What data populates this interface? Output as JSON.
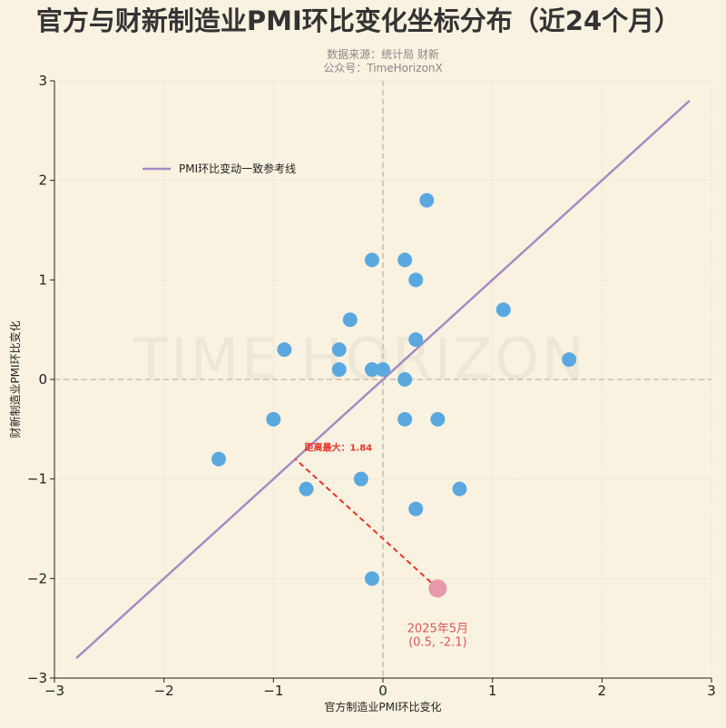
{
  "chart_data": {
    "type": "scatter",
    "title": "官方与财新制造业PMI环比变化坐标分布（近24个月）",
    "subtitle_lines": [
      "数据来源：统计局 财新",
      "公众号：TimeHorizonX"
    ],
    "xlabel": "官方制造业PMI环比变化",
    "ylabel": "财新制造业PMI环比变化",
    "xlim": [
      -3,
      3
    ],
    "ylim": [
      -3,
      3
    ],
    "xticks": [
      -3,
      -2,
      -1,
      0,
      1,
      2,
      3
    ],
    "yticks": [
      -3,
      -2,
      -1,
      0,
      1,
      2,
      3
    ],
    "xtick_labels": [
      "−3",
      "−2",
      "−1",
      "0",
      "1",
      "2",
      "3"
    ],
    "ytick_labels": [
      "−3",
      "−2",
      "−1",
      "0",
      "1",
      "2",
      "3"
    ],
    "grid": true,
    "watermark": "TIME HORIZON",
    "legend": {
      "position": "upper-left",
      "entries": [
        "PMI环比变动一致参考线"
      ]
    },
    "reference_line": {
      "name": "PMI环比变动一致参考线",
      "x": [
        -2.8,
        2.8
      ],
      "y": [
        -2.8,
        2.8
      ],
      "color": "#a48bc4"
    },
    "points": {
      "color": "#5aa8e0",
      "x": [
        0.4,
        -0.1,
        0.2,
        0.3,
        1.1,
        -0.3,
        0.3,
        -0.9,
        -0.4,
        1.7,
        -0.4,
        -0.1,
        0.0,
        0.2,
        -1.0,
        0.2,
        0.5,
        -1.5,
        -0.2,
        -0.7,
        0.7,
        0.3,
        -0.1
      ],
      "y": [
        1.8,
        1.2,
        1.2,
        1.0,
        0.7,
        0.6,
        0.4,
        0.3,
        0.3,
        0.2,
        0.1,
        0.1,
        0.1,
        0.0,
        -0.4,
        -0.4,
        -0.4,
        -0.8,
        -1.0,
        -1.1,
        -1.1,
        -1.3,
        -2.0
      ]
    },
    "highlight": {
      "x": 0.5,
      "y": -2.1,
      "color": "#e899ab",
      "label_lines": [
        "2025年5月",
        "(0.5, -2.1)"
      ],
      "distance_label": "距离最大：1.84",
      "distance_line_color": "#e8332a",
      "label_color": "#d9595a"
    }
  }
}
